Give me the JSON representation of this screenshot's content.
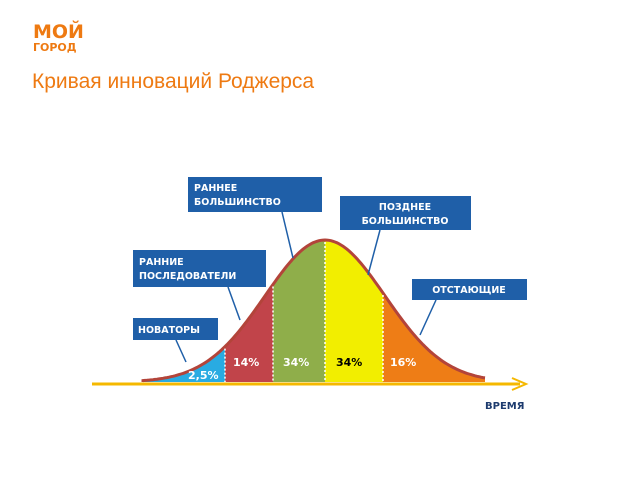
{
  "logo": {
    "line1": "МОЙ",
    "line2": "ГОРОД"
  },
  "title": "Кривая инноваций Роджерса",
  "diagram": {
    "groups": [
      {
        "label": [
          "НОВАТОРЫ"
        ],
        "share": "2,5%"
      },
      {
        "label": [
          "РАННИЕ",
          "ПОСЛЕДОВАТЕЛИ"
        ],
        "share": "14%"
      },
      {
        "label": [
          "РАННЕЕ",
          "БОЛЬШИНСТВО"
        ],
        "share": "34%"
      },
      {
        "label": [
          "ПОЗДНЕЕ",
          "БОЛЬШИНСТВО"
        ],
        "share": "34%"
      },
      {
        "label": [
          "ОТСТАЮЩИЕ"
        ],
        "share": "16%"
      }
    ],
    "axis_label": "ВРЕМЯ"
  }
}
